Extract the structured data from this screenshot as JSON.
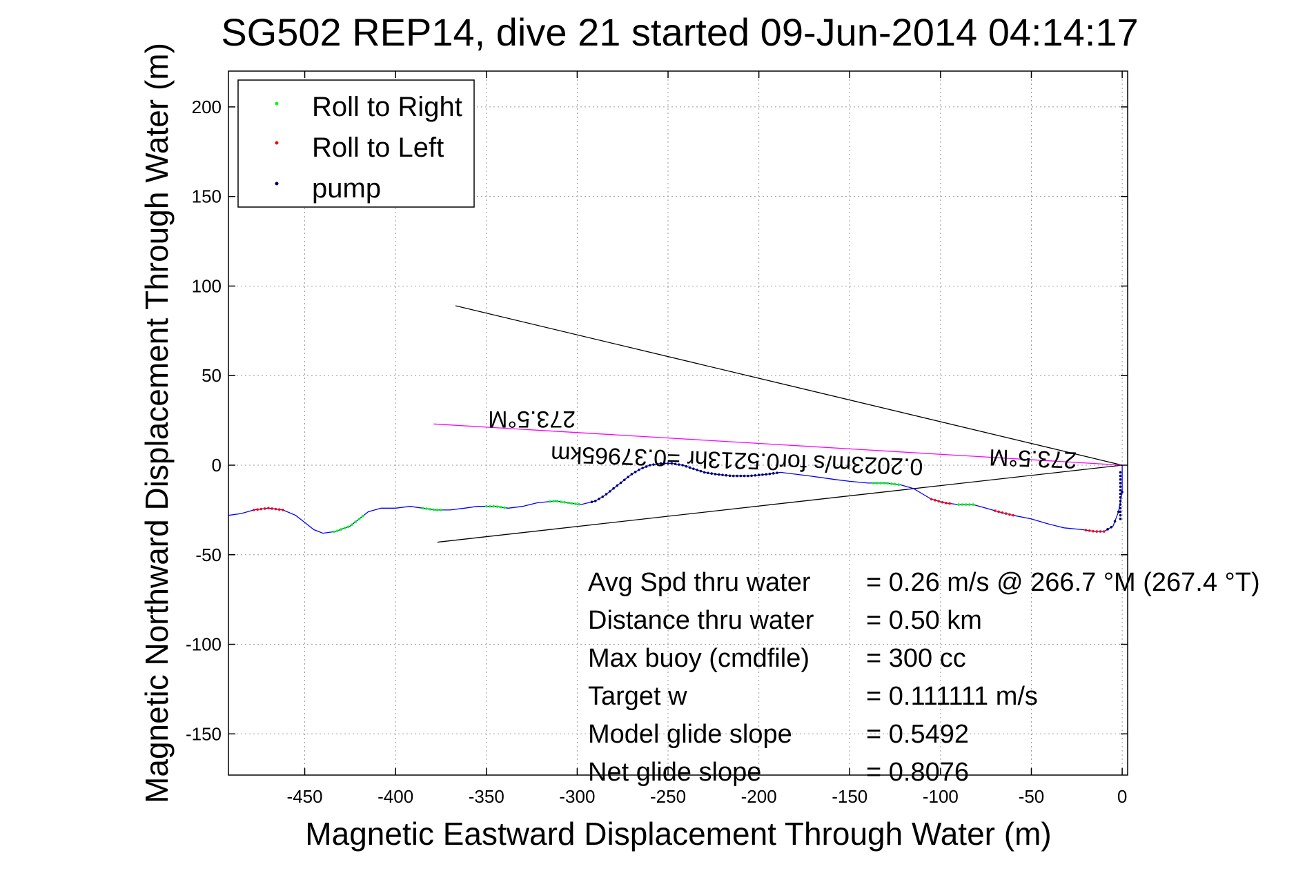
{
  "chart_data": {
    "type": "line",
    "title": "SG502 REP14, dive 21 started 09-Jun-2014 04:14:17",
    "xlabel": "Magnetic Eastward Displacement Through Water (m)",
    "ylabel": "Magnetic Northward Displacement Through Water (m)",
    "xlim": [
      -492,
      3
    ],
    "ylim": [
      -173,
      220
    ],
    "xticks": [
      -450,
      -400,
      -350,
      -300,
      -250,
      -200,
      -150,
      -100,
      -50,
      0
    ],
    "xtick_labels": [
      "-450",
      "-400",
      "-350",
      "-300",
      "-250",
      "-200",
      "-150",
      "-100",
      "-50",
      "0"
    ],
    "yticks": [
      200,
      150,
      100,
      50,
      0,
      -50,
      -100,
      -150
    ],
    "ytick_labels": [
      "200",
      "150",
      "100",
      "50",
      "0",
      "-50",
      "-100",
      "-150"
    ],
    "grid": true,
    "legend_position": "top-left",
    "legend": [
      {
        "label": "Roll to Right",
        "color": "#00ff00"
      },
      {
        "label": "Roll to Left",
        "color": "#ff0000"
      },
      {
        "label": "pump",
        "color": "#000066"
      }
    ],
    "track": {
      "color": "#0000ff",
      "points": [
        [
          -492,
          -28
        ],
        [
          -485,
          -27
        ],
        [
          -478,
          -25
        ],
        [
          -470,
          -24
        ],
        [
          -462,
          -25
        ],
        [
          -455,
          -28
        ],
        [
          -450,
          -32
        ],
        [
          -445,
          -36
        ],
        [
          -440,
          -38
        ],
        [
          -433,
          -37
        ],
        [
          -425,
          -34
        ],
        [
          -420,
          -30
        ],
        [
          -415,
          -26
        ],
        [
          -408,
          -24
        ],
        [
          -400,
          -24
        ],
        [
          -392,
          -23
        ],
        [
          -385,
          -24
        ],
        [
          -378,
          -25
        ],
        [
          -370,
          -25
        ],
        [
          -362,
          -24
        ],
        [
          -355,
          -23
        ],
        [
          -345,
          -23
        ],
        [
          -338,
          -24
        ],
        [
          -330,
          -23
        ],
        [
          -322,
          -21
        ],
        [
          -312,
          -20
        ],
        [
          -305,
          -21
        ],
        [
          -298,
          -22
        ],
        [
          -290,
          -20
        ],
        [
          -285,
          -17
        ],
        [
          -280,
          -13
        ],
        [
          -275,
          -9
        ],
        [
          -270,
          -5
        ],
        [
          -265,
          -2
        ],
        [
          -260,
          0
        ],
        [
          -254,
          1
        ],
        [
          -248,
          1
        ],
        [
          -242,
          0
        ],
        [
          -236,
          -2
        ],
        [
          -230,
          -4
        ],
        [
          -224,
          -5
        ],
        [
          -215,
          -6
        ],
        [
          -205,
          -6
        ],
        [
          -195,
          -5
        ],
        [
          -188,
          -4
        ],
        [
          -180,
          -5
        ],
        [
          -172,
          -6
        ],
        [
          -165,
          -7
        ],
        [
          -158,
          -8
        ],
        [
          -150,
          -9
        ],
        [
          -140,
          -10
        ],
        [
          -130,
          -10
        ],
        [
          -122,
          -11
        ],
        [
          -115,
          -13
        ],
        [
          -110,
          -16
        ],
        [
          -105,
          -19
        ],
        [
          -98,
          -21
        ],
        [
          -90,
          -22
        ],
        [
          -82,
          -22
        ],
        [
          -75,
          -24
        ],
        [
          -68,
          -26
        ],
        [
          -60,
          -28
        ],
        [
          -50,
          -30
        ],
        [
          -40,
          -33
        ],
        [
          -32,
          -35
        ],
        [
          -22,
          -36
        ],
        [
          -15,
          -37
        ],
        [
          -10,
          -37
        ],
        [
          -5,
          -34
        ],
        [
          -2,
          -26
        ],
        [
          0,
          -15
        ],
        [
          0,
          -5
        ],
        [
          0,
          0
        ]
      ]
    },
    "markers": {
      "roll_right_ranges": [
        [
          -434,
          -418
        ],
        [
          -385,
          -375
        ],
        [
          -350,
          -340
        ],
        [
          -315,
          -298
        ],
        [
          -137,
          -122
        ],
        [
          -90,
          -82
        ]
      ],
      "roll_left_ranges": [
        [
          -478,
          -462
        ],
        [
          -105,
          -95
        ],
        [
          -70,
          -60
        ],
        [
          -20,
          -8
        ]
      ],
      "pump_ranges": [
        [
          -292,
          -190
        ],
        [
          -8,
          0
        ]
      ]
    },
    "reference_lines": [
      {
        "from": [
          -367,
          89
        ],
        "to": [
          0,
          0
        ],
        "color": "#000000"
      },
      {
        "from": [
          -377,
          -43
        ],
        "to": [
          0,
          0
        ],
        "color": "#000000"
      },
      {
        "from": [
          -379,
          23
        ],
        "to": [
          0,
          0
        ],
        "color": "#ff00ff"
      }
    ],
    "annotations": {
      "heading_far": "273.5°M",
      "heading_near": "273.5°M",
      "speed_line": "0.2023m/s for0.5213hr =0.37965km"
    },
    "stats": [
      {
        "label": "Avg Spd thru water",
        "value": "=  0.26 m/s @ 266.7 °M (267.4 °T)"
      },
      {
        "label": "Distance thru water",
        "value": "=  0.50 km"
      },
      {
        "label": "Max buoy (cmdfile)",
        "value": "= 300 cc"
      },
      {
        "label": "Target w",
        "value": "= 0.111111 m/s"
      },
      {
        "label": "Model glide slope",
        "value": "= 0.5492"
      },
      {
        "label": "Net glide slope",
        "value": "= 0.8076"
      }
    ]
  }
}
